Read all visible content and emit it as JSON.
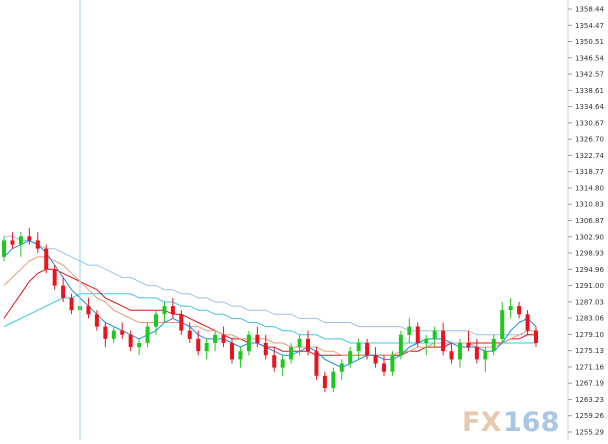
{
  "chart_data": {
    "type": "candlestick",
    "ylim": [
      1255.29,
      1358.44
    ],
    "y_ticks": [
      "1358.44",
      "1354.47",
      "1350.51",
      "1346.54",
      "1342.57",
      "1338.61",
      "1334.64",
      "1330.67",
      "1326.70",
      "1322.74",
      "1318.77",
      "1314.80",
      "1310.83",
      "1306.87",
      "1302.90",
      "1298.93",
      "1294.96",
      "1291.00",
      "1287.03",
      "1283.06",
      "1279.10",
      "1275.13",
      "1271.16",
      "1267.19",
      "1263.23",
      "1259.26",
      "1255.29"
    ],
    "colors": {
      "up": "#1ec81e",
      "down": "#e8141e",
      "ma_short": "#1a8fe0",
      "ma_mid": "#e89a7a",
      "ma_red": "#e0141e",
      "ma_cyan": "#3ec8e0",
      "ma_long": "#9cc4e8",
      "crosshair": "#8ad4e0",
      "grid": "#d8d8d8"
    },
    "candles": [
      [
        1298,
        1303,
        1297,
        1302
      ],
      [
        1302,
        1304,
        1300,
        1301
      ],
      [
        1301,
        1304,
        1298,
        1303
      ],
      [
        1303,
        1305,
        1301,
        1302
      ],
      [
        1302,
        1304,
        1299,
        1300
      ],
      [
        1300,
        1301,
        1294,
        1295
      ],
      [
        1295,
        1296,
        1290,
        1291
      ],
      [
        1291,
        1293,
        1287,
        1288
      ],
      [
        1288,
        1289,
        1284,
        1285
      ],
      [
        1285,
        1287,
        1283,
        1286
      ],
      [
        1286,
        1288,
        1283,
        1284
      ],
      [
        1284,
        1285,
        1280,
        1281
      ],
      [
        1281,
        1282,
        1276,
        1278
      ],
      [
        1278,
        1281,
        1277,
        1280
      ],
      [
        1280,
        1282,
        1278,
        1279
      ],
      [
        1279,
        1280,
        1275,
        1276
      ],
      [
        1276,
        1278,
        1274,
        1277
      ],
      [
        1277,
        1282,
        1276,
        1281
      ],
      [
        1281,
        1285,
        1279,
        1284
      ],
      [
        1284,
        1287,
        1282,
        1286
      ],
      [
        1286,
        1288,
        1283,
        1284
      ],
      [
        1284,
        1285,
        1279,
        1280
      ],
      [
        1280,
        1282,
        1277,
        1278
      ],
      [
        1278,
        1280,
        1274,
        1275
      ],
      [
        1275,
        1278,
        1273,
        1277
      ],
      [
        1277,
        1280,
        1275,
        1279
      ],
      [
        1279,
        1281,
        1276,
        1277
      ],
      [
        1277,
        1278,
        1272,
        1273
      ],
      [
        1273,
        1276,
        1271,
        1275
      ],
      [
        1275,
        1280,
        1274,
        1279
      ],
      [
        1279,
        1281,
        1276,
        1277
      ],
      [
        1277,
        1279,
        1273,
        1274
      ],
      [
        1274,
        1276,
        1270,
        1271
      ],
      [
        1271,
        1274,
        1269,
        1273
      ],
      [
        1273,
        1277,
        1272,
        1276
      ],
      [
        1276,
        1279,
        1274,
        1278
      ],
      [
        1278,
        1280,
        1274,
        1275
      ],
      [
        1275,
        1276,
        1268,
        1269
      ],
      [
        1269,
        1270,
        1265,
        1266
      ],
      [
        1266,
        1271,
        1265,
        1270
      ],
      [
        1270,
        1273,
        1268,
        1272
      ],
      [
        1272,
        1276,
        1271,
        1275
      ],
      [
        1275,
        1278,
        1273,
        1277
      ],
      [
        1277,
        1278,
        1273,
        1274
      ],
      [
        1274,
        1276,
        1271,
        1272
      ],
      [
        1272,
        1274,
        1269,
        1270
      ],
      [
        1270,
        1275,
        1269,
        1274
      ],
      [
        1274,
        1280,
        1273,
        1279
      ],
      [
        1279,
        1283,
        1277,
        1281
      ],
      [
        1281,
        1282,
        1276,
        1277
      ],
      [
        1277,
        1279,
        1274,
        1278
      ],
      [
        1278,
        1281,
        1276,
        1280
      ],
      [
        1280,
        1282,
        1274,
        1275
      ],
      [
        1275,
        1277,
        1272,
        1273
      ],
      [
        1273,
        1278,
        1271,
        1277
      ],
      [
        1277,
        1280,
        1275,
        1276
      ],
      [
        1276,
        1278,
        1272,
        1273
      ],
      [
        1273,
        1276,
        1270,
        1275
      ],
      [
        1275,
        1279,
        1274,
        1278
      ],
      [
        1278,
        1287,
        1277,
        1285
      ],
      [
        1285,
        1288,
        1283,
        1286
      ],
      [
        1286,
        1287,
        1283,
        1284
      ],
      [
        1284,
        1285,
        1279,
        1280
      ],
      [
        1280,
        1281,
        1276,
        1277
      ]
    ],
    "ma_short": [
      1298,
      1300,
      1301,
      1302,
      1301,
      1299,
      1296,
      1293,
      1290,
      1288,
      1286,
      1284,
      1282,
      1281,
      1280,
      1279,
      1278,
      1279,
      1280,
      1282,
      1283,
      1282,
      1281,
      1279,
      1278,
      1278,
      1278,
      1277,
      1276,
      1277,
      1277,
      1276,
      1275,
      1274,
      1274,
      1275,
      1276,
      1275,
      1273,
      1272,
      1271,
      1272,
      1273,
      1274,
      1274,
      1273,
      1273,
      1274,
      1276,
      1277,
      1278,
      1278,
      1278,
      1277,
      1276,
      1276,
      1276,
      1275,
      1275,
      1277,
      1280,
      1282,
      1283,
      1281
    ],
    "ma_mid": [
      1291,
      1293,
      1295,
      1297,
      1298,
      1298,
      1297,
      1296,
      1294,
      1292,
      1290,
      1288,
      1287,
      1285,
      1284,
      1283,
      1282,
      1282,
      1282,
      1282,
      1282,
      1282,
      1281,
      1281,
      1280,
      1280,
      1279,
      1279,
      1278,
      1278,
      1278,
      1278,
      1277,
      1277,
      1276,
      1276,
      1276,
      1276,
      1275,
      1275,
      1274,
      1274,
      1274,
      1274,
      1274,
      1274,
      1274,
      1275,
      1275,
      1276,
      1276,
      1277,
      1277,
      1277,
      1277,
      1277,
      1276,
      1276,
      1276,
      1277,
      1278,
      1279,
      1280,
      1280
    ],
    "ma_red": [
      1283,
      1286,
      1289,
      1292,
      1294,
      1295,
      1295,
      1294,
      1293,
      1292,
      1291,
      1290,
      1288,
      1287,
      1286,
      1285,
      1285,
      1285,
      1285,
      1285,
      1284,
      1284,
      1283,
      1282,
      1281,
      1280,
      1279,
      1278,
      1278,
      1277,
      1277,
      1276,
      1276,
      1275,
      1275,
      1275,
      1275,
      1274,
      1274,
      1274,
      1274,
      1274,
      1274,
      1274,
      1274,
      1274,
      1274,
      1274,
      1275,
      1275,
      1276,
      1276,
      1276,
      1277,
      1277,
      1277,
      1277,
      1277,
      1277,
      1277,
      1278,
      1278,
      1279,
      1279
    ],
    "ma_cyan": [
      1281,
      1282,
      1283,
      1284,
      1285,
      1286,
      1287,
      1288,
      1288,
      1289,
      1289,
      1289,
      1289,
      1289,
      1289,
      1289,
      1288,
      1288,
      1288,
      1287,
      1287,
      1286,
      1286,
      1285,
      1285,
      1284,
      1284,
      1283,
      1283,
      1282,
      1282,
      1281,
      1281,
      1280,
      1280,
      1279,
      1279,
      1279,
      1278,
      1278,
      1278,
      1277,
      1277,
      1277,
      1277,
      1277,
      1277,
      1277,
      1277,
      1277,
      1277,
      1277,
      1277,
      1277,
      1277,
      1277,
      1277,
      1277,
      1277,
      1277,
      1277,
      1277,
      1277,
      1277
    ],
    "ma_long": [
      1303,
      1303,
      1302,
      1302,
      1301,
      1300,
      1300,
      1299,
      1298,
      1297,
      1296,
      1296,
      1295,
      1294,
      1293,
      1293,
      1292,
      1291,
      1291,
      1290,
      1290,
      1289,
      1289,
      1288,
      1288,
      1287,
      1287,
      1286,
      1286,
      1285,
      1285,
      1285,
      1284,
      1284,
      1284,
      1283,
      1283,
      1283,
      1282,
      1282,
      1282,
      1282,
      1281,
      1281,
      1281,
      1281,
      1281,
      1281,
      1280,
      1280,
      1280,
      1280,
      1280,
      1280,
      1280,
      1280,
      1279,
      1279,
      1279,
      1279,
      1279,
      1279,
      1279,
      1279
    ],
    "crosshair_index": 9
  },
  "watermark": {
    "fx": "FX",
    "num": "168"
  }
}
